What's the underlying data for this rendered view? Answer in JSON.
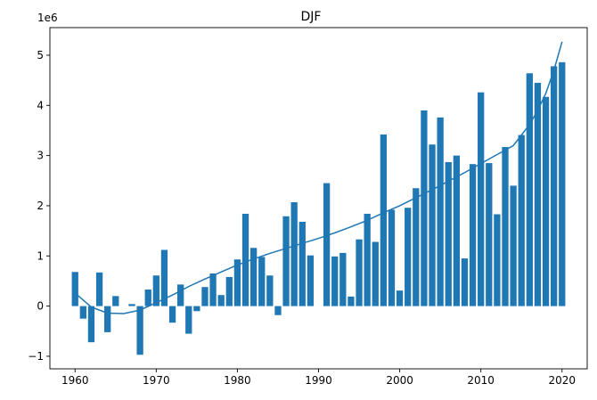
{
  "chart_data": {
    "type": "bar",
    "title": "DJF",
    "xlabel": "",
    "ylabel": "",
    "y_offset_label": "1e6",
    "xlim": [
      1956.9,
      2023.1
    ],
    "ylim": [
      -1.25,
      5.55
    ],
    "xticks": [
      1960,
      1970,
      1980,
      1990,
      2000,
      2010,
      2020
    ],
    "yticks": [
      -1,
      0,
      1,
      2,
      3,
      4,
      5
    ],
    "ytick_labels": [
      "−1",
      "0",
      "1",
      "2",
      "3",
      "4",
      "5"
    ],
    "grid": false,
    "legend": "none",
    "bar_color": "#1f77b4",
    "line_color": "#1f77b4",
    "x": [
      1960,
      1961,
      1962,
      1963,
      1964,
      1965,
      1966,
      1967,
      1968,
      1969,
      1970,
      1971,
      1972,
      1973,
      1974,
      1975,
      1976,
      1977,
      1978,
      1979,
      1980,
      1981,
      1982,
      1983,
      1984,
      1985,
      1986,
      1987,
      1988,
      1989,
      1990,
      1991,
      1992,
      1993,
      1994,
      1995,
      1996,
      1997,
      1998,
      1999,
      2000,
      2001,
      2002,
      2003,
      2004,
      2005,
      2006,
      2007,
      2008,
      2009,
      2010,
      2011,
      2012,
      2013,
      2014,
      2015,
      2016,
      2017,
      2018,
      2019,
      2020
    ],
    "values": [
      0.68,
      -0.25,
      -0.72,
      0.67,
      -0.52,
      0.2,
      0.0,
      0.04,
      -0.97,
      0.33,
      0.61,
      1.12,
      -0.33,
      0.43,
      -0.55,
      -0.1,
      0.38,
      0.65,
      0.22,
      0.58,
      0.93,
      1.84,
      1.16,
      0.98,
      0.61,
      -0.18,
      1.79,
      2.07,
      1.68,
      1.01,
      0.0,
      2.45,
      0.99,
      1.06,
      0.19,
      1.33,
      1.84,
      1.28,
      3.42,
      1.92,
      0.31,
      1.96,
      2.35,
      3.9,
      3.22,
      3.76,
      2.87,
      3.0,
      0.95,
      2.83,
      4.26,
      2.85,
      1.83,
      3.17,
      2.4,
      3.41,
      4.64,
      4.45,
      4.17,
      4.78,
      4.86
    ],
    "trend": {
      "x": [
        1960,
        1962,
        1964,
        1966,
        1968,
        1970,
        1972,
        1974,
        1976,
        1978,
        1980,
        1982,
        1984,
        1986,
        1988,
        1990,
        1992,
        1994,
        1996,
        1998,
        2000,
        2002,
        2004,
        2006,
        2008,
        2010,
        2012,
        2014,
        2016,
        2017,
        2018,
        2019,
        2020
      ],
      "y": [
        0.26,
        -0.02,
        -0.14,
        -0.15,
        -0.08,
        0.07,
        0.22,
        0.39,
        0.54,
        0.68,
        0.82,
        0.94,
        1.05,
        1.15,
        1.25,
        1.35,
        1.46,
        1.58,
        1.71,
        1.86,
        2.0,
        2.16,
        2.32,
        2.49,
        2.66,
        2.84,
        3.02,
        3.2,
        3.62,
        3.9,
        4.24,
        4.7,
        5.27
      ]
    }
  }
}
